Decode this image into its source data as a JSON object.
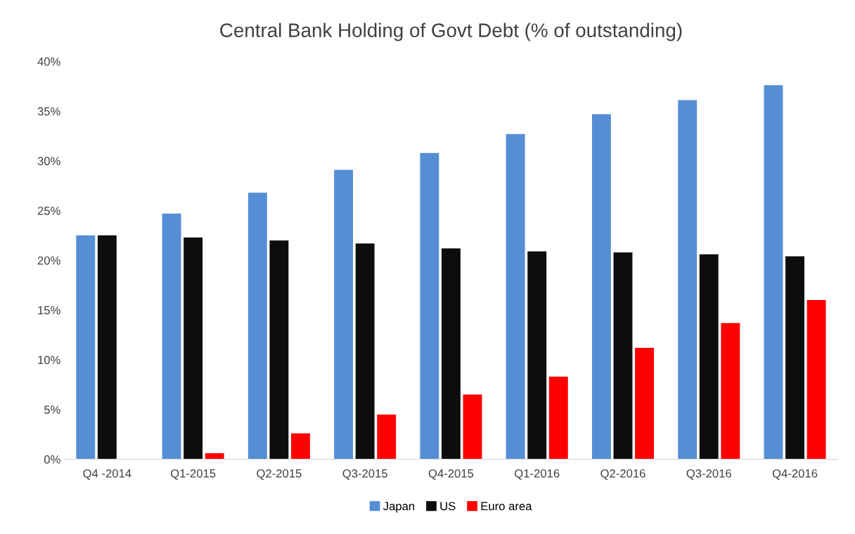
{
  "chart_data": {
    "type": "bar",
    "title": "Central Bank Holding of Govt Debt (% of outstanding)",
    "categories": [
      "Q4 -2014",
      "Q1-2015",
      "Q2-2015",
      "Q3-2015",
      "Q4-2015",
      "Q1-2016",
      "Q2-2016",
      "Q3-2016",
      "Q4-2016"
    ],
    "series": [
      {
        "name": "Japan",
        "color": "#558ed5",
        "values": [
          22.5,
          24.7,
          26.8,
          29.1,
          30.8,
          32.7,
          34.7,
          36.1,
          37.6
        ]
      },
      {
        "name": "US",
        "color": "#0d0d0d",
        "values": [
          22.5,
          22.3,
          22.0,
          21.7,
          21.2,
          20.9,
          20.8,
          20.6,
          20.4
        ]
      },
      {
        "name": "Euro area",
        "color": "#ff0000",
        "values": [
          0,
          0.6,
          2.6,
          4.5,
          6.5,
          8.3,
          11.2,
          13.7,
          16.0
        ]
      }
    ],
    "ylim": [
      0,
      40
    ],
    "yticks": [
      {
        "value": 0,
        "label": "0%"
      },
      {
        "value": 5,
        "label": "5%"
      },
      {
        "value": 10,
        "label": "10%"
      },
      {
        "value": 15,
        "label": "15%"
      },
      {
        "value": 20,
        "label": "20%"
      },
      {
        "value": 25,
        "label": "25%"
      },
      {
        "value": 30,
        "label": "30%"
      },
      {
        "value": 35,
        "label": "35%"
      },
      {
        "value": 40,
        "label": "40%"
      }
    ],
    "grid": false,
    "legend": "bottom"
  }
}
